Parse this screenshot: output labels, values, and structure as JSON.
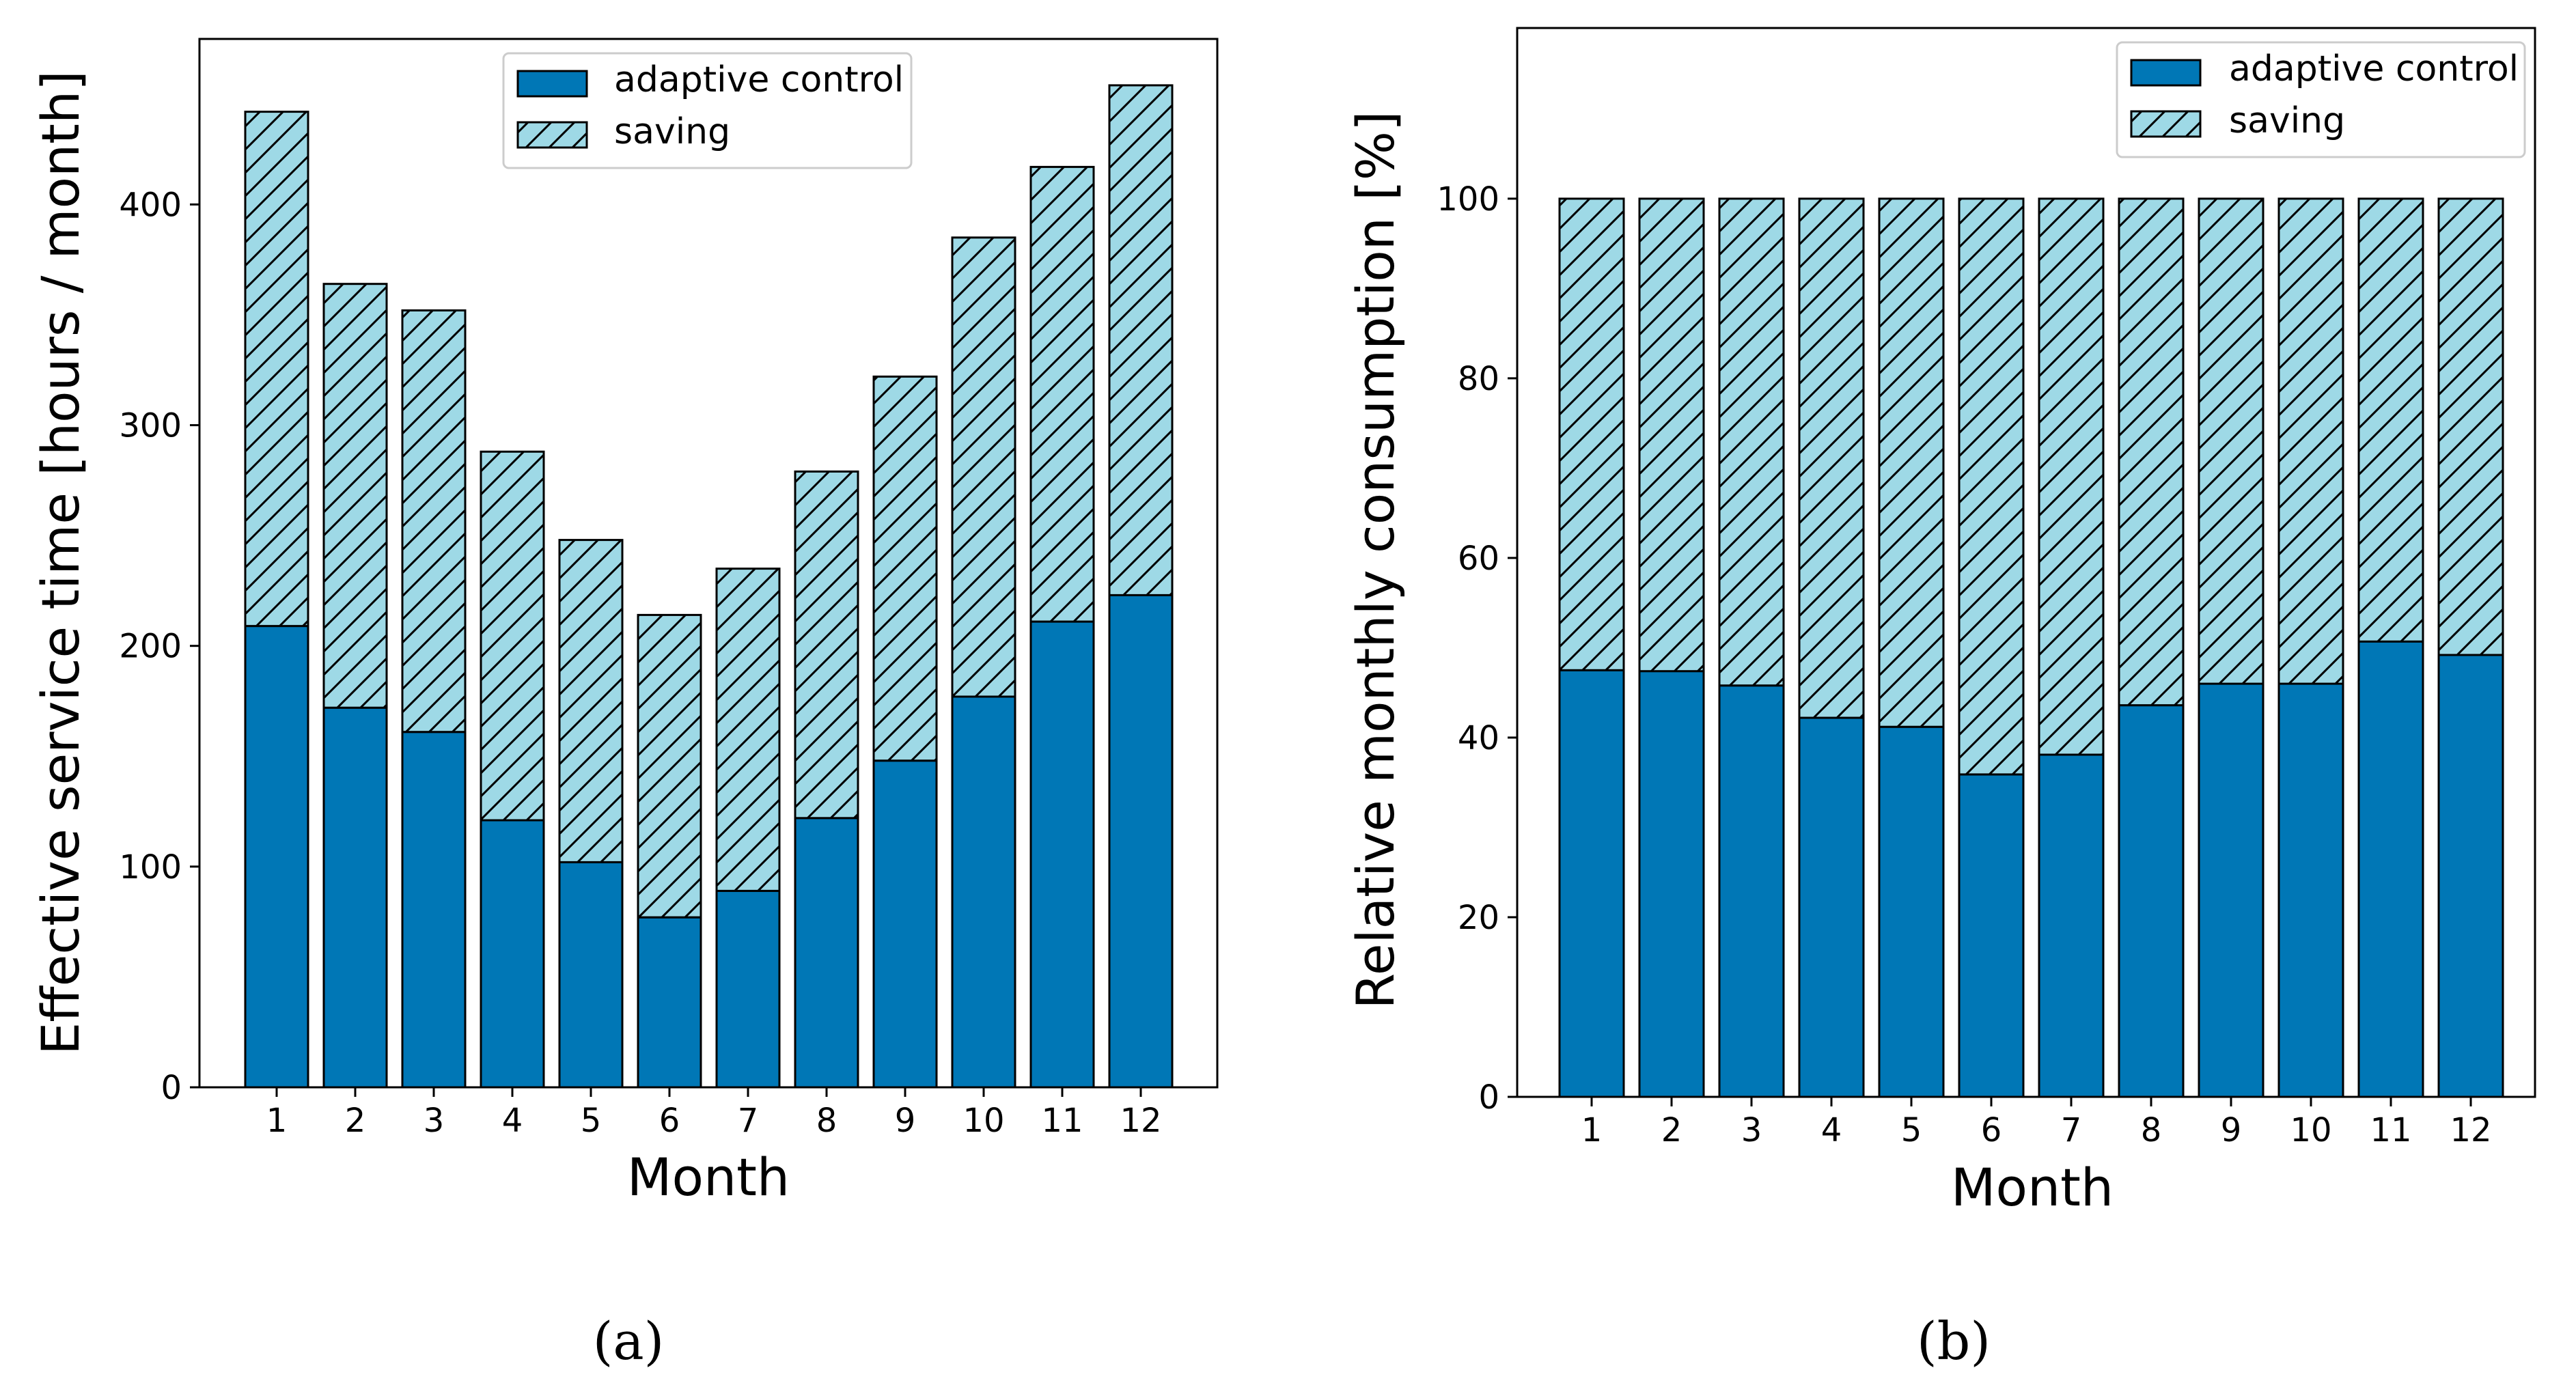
{
  "colors": {
    "adaptive": "#0077b6",
    "saving": "#9ed9e6",
    "edge": "#000000"
  },
  "chart_data": [
    {
      "id": "a",
      "type": "bar",
      "stacked": true,
      "categories": [
        "1",
        "2",
        "3",
        "4",
        "5",
        "6",
        "7",
        "8",
        "9",
        "10",
        "11",
        "12"
      ],
      "series": [
        {
          "name": "adaptive control",
          "values": [
            209,
            172,
            161,
            121,
            102,
            77,
            89,
            122,
            148,
            177,
            211,
            223
          ]
        },
        {
          "name": "saving",
          "values": [
            233,
            192,
            191,
            167,
            146,
            137,
            146,
            157,
            174,
            208,
            206,
            231
          ]
        }
      ],
      "title": "",
      "xlabel": "Month",
      "ylabel": "Effective service time [hours / month]",
      "ylim": [
        0,
        475
      ],
      "yticks": [
        0,
        100,
        200,
        300,
        400
      ],
      "legend": "top-center",
      "grid": false,
      "caption": "(a)"
    },
    {
      "id": "b",
      "type": "bar",
      "stacked": true,
      "categories": [
        "1",
        "2",
        "3",
        "4",
        "5",
        "6",
        "7",
        "8",
        "9",
        "10",
        "11",
        "12"
      ],
      "series": [
        {
          "name": "adaptive control",
          "values": [
            47.5,
            47.4,
            45.8,
            42.2,
            41.2,
            35.9,
            38.1,
            43.6,
            46.0,
            46.0,
            50.7,
            49.2
          ]
        },
        {
          "name": "saving",
          "values": [
            52.5,
            52.6,
            54.2,
            57.8,
            58.8,
            64.1,
            61.9,
            56.4,
            54.0,
            54.0,
            49.3,
            50.8
          ]
        }
      ],
      "title": "",
      "xlabel": "Month",
      "ylabel": "Relative monthly consumption [%]",
      "ylim": [
        0,
        119
      ],
      "yticks": [
        0,
        20,
        40,
        60,
        80,
        100
      ],
      "legend": "top-right",
      "grid": false,
      "caption": "(b)"
    }
  ]
}
